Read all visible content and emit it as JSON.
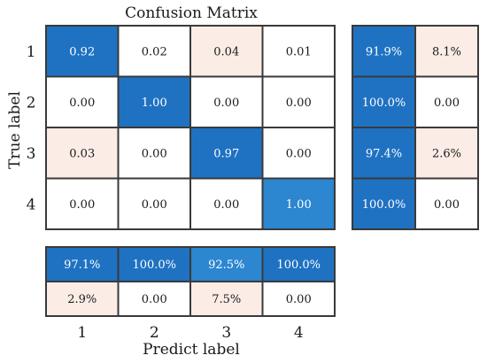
{
  "chart_data": {
    "type": "heatmap",
    "title": "Confusion Matrix",
    "xlabel": "Predict label",
    "ylabel": "True label",
    "row_labels": [
      "1",
      "2",
      "3",
      "4"
    ],
    "col_labels": [
      "1",
      "2",
      "3",
      "4"
    ],
    "matrix": [
      [
        "0.92",
        "0.02",
        "0.04",
        "0.01"
      ],
      [
        "0.00",
        "1.00",
        "0.00",
        "0.00"
      ],
      [
        "0.03",
        "0.00",
        "0.97",
        "0.00"
      ],
      [
        "0.00",
        "0.00",
        "0.00",
        "1.00"
      ]
    ],
    "matrix_values": [
      [
        0.92,
        0.02,
        0.04,
        0.01
      ],
      [
        0.0,
        1.0,
        0.0,
        0.0
      ],
      [
        0.03,
        0.0,
        0.97,
        0.0
      ],
      [
        0.0,
        0.0,
        0.0,
        1.0
      ]
    ],
    "row_summary": [
      {
        "correct": "91.9%",
        "incorrect": "8.1%"
      },
      {
        "correct": "100.0%",
        "incorrect": "0.00"
      },
      {
        "correct": "97.4%",
        "incorrect": "2.6%"
      },
      {
        "correct": "100.0%",
        "incorrect": "0.00"
      }
    ],
    "column_summary": [
      {
        "correct": "97.1%",
        "incorrect": "2.9%"
      },
      {
        "correct": "100.0%",
        "incorrect": "0.00"
      },
      {
        "correct": "92.5%",
        "incorrect": "7.5%"
      },
      {
        "correct": "100.0%",
        "incorrect": "0.00"
      }
    ],
    "colors": {
      "diagonal_dark": "#1f72c2",
      "diagonal_medium": "#2c86d0",
      "off_diagonal_tint": "#fbece6",
      "empty": "#ffffff",
      "grid": "#3a3a3a",
      "text_on_dark": "#ffffff",
      "text_on_light": "#1a1a1a"
    }
  }
}
